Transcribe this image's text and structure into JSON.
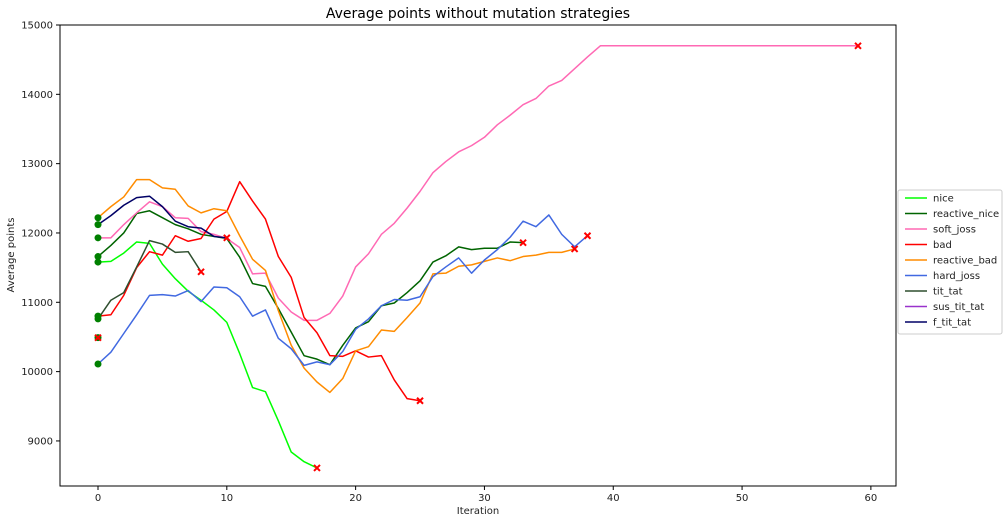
{
  "chart_data": {
    "type": "line",
    "title": "Average points without mutation strategies",
    "xlabel": "Iteration",
    "ylabel": "Average points",
    "xlim": [
      -2.95,
      61.95
    ],
    "ylim": [
      8350,
      15000
    ],
    "xticks": [
      0,
      10,
      20,
      30,
      40,
      50,
      60
    ],
    "yticks": [
      9000,
      10000,
      11000,
      12000,
      13000,
      14000,
      15000
    ],
    "grid": false,
    "legend_position": "right",
    "start_marker_color": "#008000",
    "end_marker_color": "#ff0000",
    "series": [
      {
        "name": "nice",
        "color": "#00ff00",
        "values": [
          11580,
          11590,
          11710,
          11870,
          11850,
          11550,
          11340,
          11160,
          11030,
          10890,
          10710,
          10260,
          9770,
          9710,
          9290,
          8840,
          8700,
          8610
        ]
      },
      {
        "name": "reactive_nice",
        "color": "#006400",
        "values": [
          11660,
          11820,
          12000,
          12280,
          12320,
          12220,
          12120,
          12060,
          11980,
          11950,
          11920,
          11650,
          11270,
          11230,
          10910,
          10570,
          10230,
          10180,
          10100,
          10380,
          10630,
          10720,
          10950,
          10990,
          11140,
          11310,
          11580,
          11670,
          11800,
          11760,
          11780,
          11780,
          11870,
          11860
        ]
      },
      {
        "name": "soft_joss",
        "color": "#ff69b4",
        "values": [
          11930,
          11930,
          12120,
          12290,
          12450,
          12380,
          12220,
          12210,
          12020,
          11980,
          11920,
          11790,
          11410,
          11420,
          11060,
          10860,
          10740,
          10740,
          10840,
          11090,
          11510,
          11700,
          11980,
          12140,
          12360,
          12600,
          12870,
          13030,
          13170,
          13260,
          13380,
          13560,
          13700,
          13850,
          13940,
          14120,
          14200,
          14370,
          14540,
          14700,
          14700,
          14700,
          14700,
          14700,
          14700,
          14700,
          14700,
          14700,
          14700,
          14700,
          14700,
          14700,
          14700,
          14700,
          14700,
          14700,
          14700,
          14700,
          14700,
          14700
        ]
      },
      {
        "name": "bad",
        "color": "#ff0000",
        "values": [
          10800,
          10820,
          11100,
          11500,
          11730,
          11680,
          11960,
          11880,
          11920,
          12200,
          12310,
          12740,
          12460,
          12200,
          11660,
          11360,
          10780,
          10560,
          10230,
          10220,
          10300,
          10210,
          10230,
          9880,
          9610,
          9580
        ]
      },
      {
        "name": "reactive_bad",
        "color": "#ff8c00",
        "values": [
          12220,
          12380,
          12520,
          12770,
          12770,
          12650,
          12630,
          12390,
          12290,
          12350,
          12320,
          11960,
          11620,
          11460,
          10880,
          10380,
          10050,
          9850,
          9700,
          9900,
          10300,
          10360,
          10600,
          10580,
          10780,
          10990,
          11410,
          11420,
          11520,
          11540,
          11590,
          11640,
          11600,
          11660,
          11680,
          11720,
          11720,
          11770
        ]
      },
      {
        "name": "hard_joss",
        "color": "#4169e1",
        "values": [
          10110,
          10280,
          10550,
          10820,
          11100,
          11110,
          11090,
          11170,
          11010,
          11220,
          11210,
          11080,
          10800,
          10890,
          10480,
          10330,
          10090,
          10140,
          10100,
          10290,
          10610,
          10760,
          10950,
          11040,
          11030,
          11080,
          11370,
          11510,
          11640,
          11420,
          11610,
          11760,
          11940,
          12170,
          12090,
          12260,
          11980,
          11800,
          11960
        ]
      },
      {
        "name": "tit_tat",
        "color": "#2f4f2f",
        "values": [
          10760,
          11030,
          11140,
          11510,
          11890,
          11840,
          11720,
          11730,
          11440
        ]
      },
      {
        "name": "sus_tit_tat",
        "color": "#9932cc",
        "values": [
          10490
        ]
      },
      {
        "name": "f_tit_tat",
        "color": "#000066",
        "values": [
          12120,
          12250,
          12400,
          12510,
          12530,
          12380,
          12170,
          12090,
          12070,
          11950,
          11930
        ]
      }
    ]
  }
}
